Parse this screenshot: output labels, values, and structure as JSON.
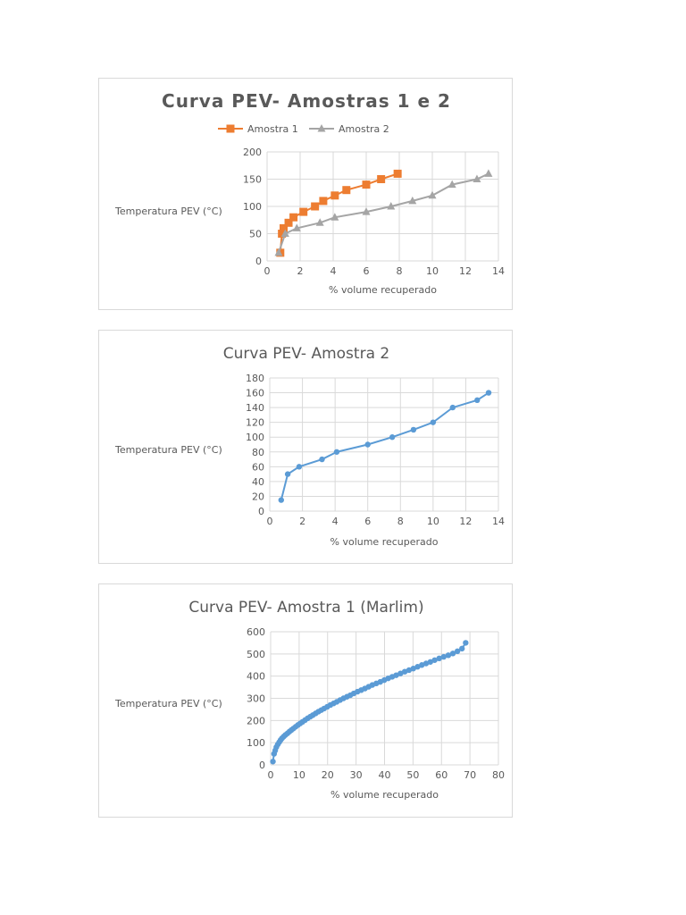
{
  "chart_data": [
    {
      "type": "line",
      "title": "Curva PEV- Amostras 1 e 2",
      "xlabel": "% volume recuperado",
      "ylabel": "Temperatura PEV (°C)",
      "xlim": [
        0,
        14
      ],
      "ylim": [
        0,
        200
      ],
      "xticks": [
        0,
        2,
        4,
        6,
        8,
        10,
        12,
        14
      ],
      "yticks": [
        0,
        50,
        100,
        150,
        200
      ],
      "legend": "top",
      "series": [
        {
          "name": "Amostra 1",
          "color": "#ed7d31",
          "marker": "square",
          "x": [
            0.8,
            0.9,
            1.0,
            1.3,
            1.6,
            2.2,
            2.9,
            3.4,
            4.1,
            4.8,
            6.0,
            6.9,
            7.9
          ],
          "y": [
            15,
            50,
            60,
            70,
            80,
            90,
            100,
            110,
            120,
            130,
            140,
            150,
            160
          ]
        },
        {
          "name": "Amostra 2",
          "color": "#a5a5a5",
          "marker": "triangle",
          "x": [
            0.7,
            1.1,
            1.8,
            3.2,
            4.1,
            6.0,
            7.5,
            8.8,
            10.0,
            11.2,
            12.7,
            13.4
          ],
          "y": [
            15,
            50,
            60,
            70,
            80,
            90,
            100,
            110,
            120,
            140,
            150,
            160
          ]
        }
      ]
    },
    {
      "type": "line",
      "title": "Curva PEV- Amostra 2",
      "xlabel": "% volume recuperado",
      "ylabel": "Temperatura PEV (°C)",
      "xlim": [
        0,
        14
      ],
      "ylim": [
        0,
        180
      ],
      "xticks": [
        0,
        2,
        4,
        6,
        8,
        10,
        12,
        14
      ],
      "yticks": [
        0,
        20,
        40,
        60,
        80,
        100,
        120,
        140,
        160,
        180
      ],
      "series": [
        {
          "name": "Amostra 2",
          "color": "#5b9bd5",
          "marker": "circle",
          "x": [
            0.7,
            1.1,
            1.8,
            3.2,
            4.1,
            6.0,
            7.5,
            8.8,
            10.0,
            11.2,
            12.7,
            13.4
          ],
          "y": [
            15,
            50,
            60,
            70,
            80,
            90,
            100,
            110,
            120,
            140,
            150,
            160
          ]
        }
      ]
    },
    {
      "type": "line",
      "title": "Curva PEV- Amostra 1 (Marlim)",
      "xlabel": "% volume recuperado",
      "ylabel": "Temperatura PEV (°C)",
      "xlim": [
        0,
        80
      ],
      "ylim": [
        0,
        600
      ],
      "xticks": [
        0,
        10,
        20,
        30,
        40,
        50,
        60,
        70,
        80
      ],
      "yticks": [
        0,
        100,
        200,
        300,
        400,
        500,
        600
      ],
      "series": [
        {
          "name": "Amostra 1 (Marlim)",
          "color": "#5b9bd5",
          "marker": "circle",
          "x": [
            0.8,
            1.2,
            1.6,
            2.0,
            2.5,
            3.0,
            3.5,
            4.0,
            4.6,
            5.2,
            5.9,
            6.6,
            7.3,
            8.0,
            8.8,
            9.6,
            10.4,
            11.2,
            12.1,
            13.0,
            13.9,
            14.8,
            15.8,
            16.8,
            17.8,
            18.8,
            19.9,
            21.0,
            22.1,
            23.2,
            24.4,
            25.6,
            26.8,
            28.0,
            29.2,
            30.5,
            31.8,
            33.1,
            34.4,
            35.7,
            37.1,
            38.5,
            39.9,
            41.3,
            42.7,
            44.1,
            45.6,
            47.1,
            48.6,
            50.1,
            51.6,
            53.1,
            54.6,
            56.1,
            57.6,
            59.2,
            60.8,
            62.4,
            64.0,
            65.6,
            67.2,
            68.5
          ],
          "y": [
            15,
            50,
            65,
            80,
            92,
            102,
            112,
            120,
            128,
            135,
            142,
            150,
            157,
            164,
            172,
            180,
            187,
            194,
            202,
            210,
            217,
            224,
            232,
            240,
            247,
            254,
            262,
            270,
            277,
            284,
            292,
            300,
            307,
            314,
            322,
            330,
            337,
            344,
            352,
            360,
            367,
            374,
            382,
            390,
            397,
            404,
            412,
            420,
            427,
            434,
            442,
            450,
            457,
            464,
            472,
            480,
            487,
            494,
            502,
            512,
            524,
            550
          ]
        }
      ]
    }
  ]
}
